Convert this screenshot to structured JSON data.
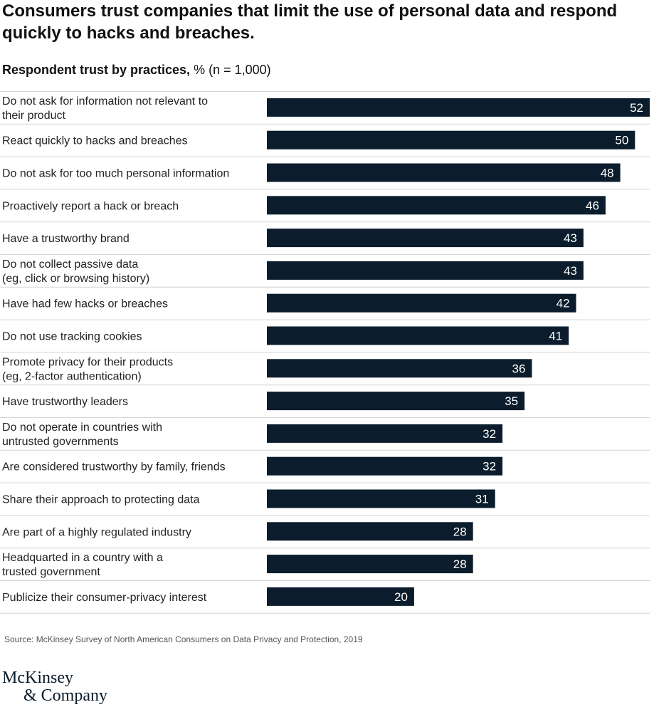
{
  "title": "Consumers trust companies that limit the use of personal data and respond quickly to hacks and breaches.",
  "subtitle": {
    "bold": "Respondent trust by practices,",
    "unit": " % (n = 1,000)"
  },
  "source": "Source: McKinsey Survey of North American Consumers on Data Privacy and Protection, 2019",
  "logo": {
    "line1": "McKinsey",
    "line2": "& Company"
  },
  "colors": {
    "bar": "#0b1d2c",
    "divider": "#d4d4d4",
    "bar_label": "#ffffff"
  },
  "chart_data": {
    "type": "bar",
    "orientation": "horizontal",
    "categories": [
      "Do not ask for information not relevant to their product",
      "React quickly to hacks and breaches",
      "Do not ask for too much personal information",
      "Proactively report a hack or breach",
      "Have a trustworthy brand",
      "Do not collect passive data (eg, click or browsing history)",
      "Have had few hacks or breaches",
      "Do not use tracking cookies",
      "Promote privacy for their products (eg, 2-factor authentication)",
      "Have trustworthy leaders",
      "Do not operate in countries with untrusted governments",
      "Are considered trustworthy by family, friends",
      "Share their approach to protecting data",
      "Are part of a highly regulated industry",
      "Headquarted in a country with a trusted government",
      "Publicize their consumer-privacy interest"
    ],
    "category_lines": [
      [
        "Do not ask for information not relevant to",
        "their product"
      ],
      [
        "React quickly to hacks and breaches"
      ],
      [
        "Do not ask for too much personal information"
      ],
      [
        "Proactively report a hack or breach"
      ],
      [
        "Have a trustworthy brand"
      ],
      [
        "Do not collect passive data",
        "(eg, click or browsing history)"
      ],
      [
        "Have had few hacks or breaches"
      ],
      [
        "Do not use tracking cookies"
      ],
      [
        "Promote privacy for their products",
        "(eg, 2-factor authentication)"
      ],
      [
        "Have trustworthy leaders"
      ],
      [
        "Do not operate in countries with",
        "untrusted governments"
      ],
      [
        "Are considered trustworthy by family, friends"
      ],
      [
        "Share their approach to protecting data"
      ],
      [
        "Are part of a highly regulated industry"
      ],
      [
        "Headquarted in a country with a",
        "trusted government"
      ],
      [
        "Publicize their consumer-privacy interest"
      ]
    ],
    "values": [
      52,
      50,
      48,
      46,
      43,
      43,
      42,
      41,
      36,
      35,
      32,
      32,
      31,
      28,
      28,
      20
    ],
    "unit": "%",
    "xlim": [
      0,
      52
    ],
    "grid": false,
    "legend": "none",
    "data_labels": "inside-end"
  }
}
